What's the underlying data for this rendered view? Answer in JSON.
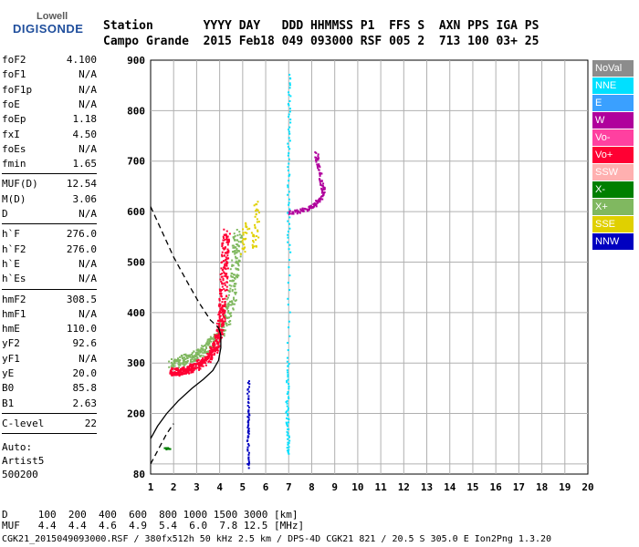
{
  "logo": {
    "top": "Lowell",
    "main": "DIGISONDE"
  },
  "header": {
    "line1": "Station       YYYY DAY   DDD HHMMSS P1  FFS S  AXN PPS IGA PS",
    "line2": "Campo Grande  2015 Feb18 049 093000 RSF 005 2  713 100 03+ 25"
  },
  "parameters": {
    "block1": [
      {
        "label": "foF2",
        "value": "4.100"
      },
      {
        "label": "foF1",
        "value": "N/A"
      },
      {
        "label": "foF1p",
        "value": "N/A"
      },
      {
        "label": "foE",
        "value": "N/A"
      },
      {
        "label": "foEp",
        "value": "1.18"
      },
      {
        "label": "fxI",
        "value": "4.50"
      },
      {
        "label": "foEs",
        "value": "N/A"
      },
      {
        "label": "fmin",
        "value": "1.65"
      }
    ],
    "block2": [
      {
        "label": "MUF(D)",
        "value": "12.54"
      },
      {
        "label": "M(D)",
        "value": "3.06"
      },
      {
        "label": "D",
        "value": "N/A"
      }
    ],
    "block3": [
      {
        "label": "h`F",
        "value": "276.0"
      },
      {
        "label": "h`F2",
        "value": "276.0"
      },
      {
        "label": "h`E",
        "value": "N/A"
      },
      {
        "label": "h`Es",
        "value": "N/A"
      }
    ],
    "block4": [
      {
        "label": "hmF2",
        "value": "308.5"
      },
      {
        "label": "hmF1",
        "value": "N/A"
      },
      {
        "label": "hmE",
        "value": "110.0"
      },
      {
        "label": "yF2",
        "value": "92.6"
      },
      {
        "label": "yF1",
        "value": "N/A"
      },
      {
        "label": "yE",
        "value": "20.0"
      },
      {
        "label": "B0",
        "value": "85.8"
      },
      {
        "label": "B1",
        "value": "2.63"
      }
    ],
    "block5": [
      {
        "label": "C-level",
        "value": "22"
      }
    ],
    "auto": {
      "line1": "Auto:",
      "line2": "Artist5",
      "line3": "500200"
    }
  },
  "legend": [
    {
      "label": "NoVal",
      "color": "#8c8c8c"
    },
    {
      "label": "NNE",
      "color": "#00e0ff"
    },
    {
      "label": "E",
      "color": "#3aa0ff"
    },
    {
      "label": "W",
      "color": "#b0009c"
    },
    {
      "label": "Vo-",
      "color": "#ff40a0"
    },
    {
      "label": "Vo+",
      "color": "#ff0033"
    },
    {
      "label": "SSW",
      "color": "#ffb0b0"
    },
    {
      "label": "X-",
      "color": "#007f00"
    },
    {
      "label": "X+",
      "color": "#80b860"
    },
    {
      "label": "SSE",
      "color": "#e0d000"
    },
    {
      "label": "NNW",
      "color": "#0000c0"
    }
  ],
  "bottom": {
    "row1": "D     100  200  400  600  800 1000 1500 3000 [km]",
    "row2": "MUF   4.4  4.4  4.6  4.9  5.4  6.0  7.8 12.5 [MHz]"
  },
  "footer": "CGK21_2015049093000.RSF / 380fx512h 50 kHz 2.5 km / DPS-4D CGK21 821 / 20.5 S 305.0 E Ion2Png 1.3.20",
  "chart_data": {
    "type": "scatter",
    "xlim": [
      1,
      20
    ],
    "ylim": [
      80,
      900
    ],
    "xticks": [
      1,
      2,
      3,
      4,
      5,
      6,
      7,
      8,
      9,
      10,
      11,
      12,
      13,
      14,
      15,
      16,
      17,
      18,
      19,
      20
    ],
    "yticks": [
      80,
      200,
      300,
      400,
      500,
      600,
      700,
      800,
      900
    ],
    "ylines": [
      100,
      200,
      300,
      400,
      500,
      600,
      700,
      800,
      900
    ],
    "ordinary_trace": {
      "color": "#ff0033",
      "points": [
        [
          1.9,
          285
        ],
        [
          2.1,
          283
        ],
        [
          2.4,
          285
        ],
        [
          2.7,
          290
        ],
        [
          3.0,
          296
        ],
        [
          3.3,
          305
        ],
        [
          3.6,
          318
        ],
        [
          3.8,
          335
        ],
        [
          3.95,
          360
        ],
        [
          4.05,
          390
        ],
        [
          4.1,
          420
        ],
        [
          4.15,
          470
        ],
        [
          4.2,
          520
        ],
        [
          4.25,
          560
        ]
      ]
    },
    "extraordinary_trace": {
      "color": "#80b860",
      "points": [
        [
          1.9,
          300
        ],
        [
          2.3,
          305
        ],
        [
          2.7,
          312
        ],
        [
          3.1,
          320
        ],
        [
          3.5,
          335
        ],
        [
          3.9,
          355
        ],
        [
          4.2,
          380
        ],
        [
          4.45,
          420
        ],
        [
          4.6,
          470
        ],
        [
          4.7,
          520
        ],
        [
          4.75,
          560
        ]
      ]
    },
    "oblique_W": {
      "color": "#b0009c",
      "points": [
        [
          7.0,
          600
        ],
        [
          7.4,
          602
        ],
        [
          7.8,
          607
        ],
        [
          8.1,
          615
        ],
        [
          8.3,
          625
        ],
        [
          8.5,
          640
        ],
        [
          8.4,
          660
        ],
        [
          8.25,
          690
        ],
        [
          8.15,
          720
        ]
      ]
    },
    "vertical_NNE": {
      "color": "#00e0ff",
      "points": [
        [
          6.95,
          120
        ],
        [
          6.95,
          160
        ],
        [
          6.9,
          200
        ],
        [
          6.92,
          250
        ],
        [
          6.95,
          310
        ],
        [
          6.98,
          520
        ],
        [
          6.95,
          620
        ],
        [
          6.97,
          720
        ],
        [
          7.0,
          800
        ],
        [
          6.98,
          880
        ]
      ]
    },
    "nnw_points": {
      "color": "#0000c0",
      "points": [
        [
          5.2,
          95
        ],
        [
          5.22,
          120
        ],
        [
          5.2,
          150
        ],
        [
          5.22,
          170
        ],
        [
          5.2,
          190
        ],
        [
          5.24,
          210
        ],
        [
          5.2,
          240
        ],
        [
          5.25,
          270
        ]
      ]
    },
    "sse_points": {
      "color": "#e0d000",
      "points": [
        [
          5.0,
          520
        ],
        [
          5.05,
          550
        ],
        [
          5.1,
          580
        ],
        [
          5.5,
          530
        ],
        [
          5.55,
          560
        ],
        [
          5.6,
          600
        ],
        [
          5.55,
          620
        ]
      ]
    },
    "low_points": {
      "color": "#007f00",
      "points": [
        [
          1.6,
          133
        ],
        [
          1.7,
          132
        ],
        [
          1.8,
          131
        ]
      ]
    },
    "true_height_profile": {
      "points": [
        [
          1.0,
          150
        ],
        [
          1.3,
          175
        ],
        [
          1.7,
          200
        ],
        [
          2.2,
          225
        ],
        [
          2.8,
          250
        ],
        [
          3.3,
          268
        ],
        [
          3.7,
          285
        ],
        [
          3.95,
          305
        ],
        [
          4.05,
          330
        ],
        [
          4.05,
          355
        ],
        [
          3.95,
          370
        ]
      ]
    },
    "extrapolated_profile": {
      "points": [
        [
          1.0,
          610
        ],
        [
          1.5,
          560
        ],
        [
          2.0,
          510
        ],
        [
          2.6,
          460
        ],
        [
          3.1,
          420
        ],
        [
          3.6,
          385
        ],
        [
          3.95,
          370
        ]
      ],
      "low": [
        [
          1.0,
          100
        ],
        [
          1.35,
          130
        ],
        [
          1.7,
          160
        ],
        [
          2.0,
          180
        ]
      ]
    }
  }
}
